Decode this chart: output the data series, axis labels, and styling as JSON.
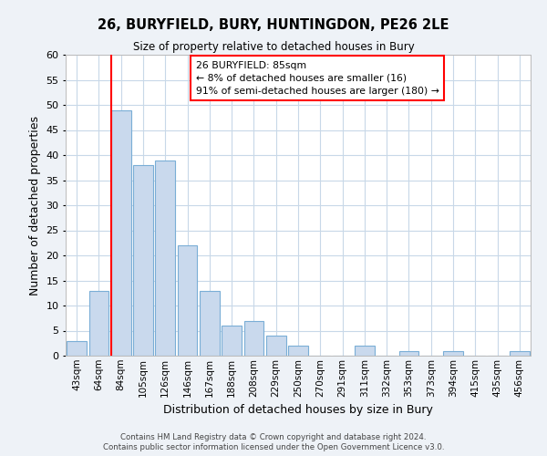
{
  "title": "26, BURYFIELD, BURY, HUNTINGDON, PE26 2LE",
  "subtitle": "Size of property relative to detached houses in Bury",
  "xlabel": "Distribution of detached houses by size in Bury",
  "ylabel": "Number of detached properties",
  "bin_labels": [
    "43sqm",
    "64sqm",
    "84sqm",
    "105sqm",
    "126sqm",
    "146sqm",
    "167sqm",
    "188sqm",
    "208sqm",
    "229sqm",
    "250sqm",
    "270sqm",
    "291sqm",
    "311sqm",
    "332sqm",
    "353sqm",
    "373sqm",
    "394sqm",
    "415sqm",
    "435sqm",
    "456sqm"
  ],
  "bar_values": [
    3,
    13,
    49,
    38,
    39,
    22,
    13,
    6,
    7,
    4,
    2,
    0,
    0,
    2,
    0,
    1,
    0,
    1,
    0,
    0,
    1
  ],
  "bar_color": "#c9d9ed",
  "bar_edge_color": "#7aaed6",
  "red_line_bin_index": 2,
  "ylim": [
    0,
    60
  ],
  "yticks": [
    0,
    5,
    10,
    15,
    20,
    25,
    30,
    35,
    40,
    45,
    50,
    55,
    60
  ],
  "annotation_title": "26 BURYFIELD: 85sqm",
  "annotation_line1": "← 8% of detached houses are smaller (16)",
  "annotation_line2": "91% of semi-detached houses are larger (180) →",
  "footer_line1": "Contains HM Land Registry data © Crown copyright and database right 2024.",
  "footer_line2": "Contains public sector information licensed under the Open Government Licence v3.0.",
  "bg_color": "#eef2f7",
  "plot_bg_color": "#ffffff",
  "grid_color": "#c8d8e8"
}
